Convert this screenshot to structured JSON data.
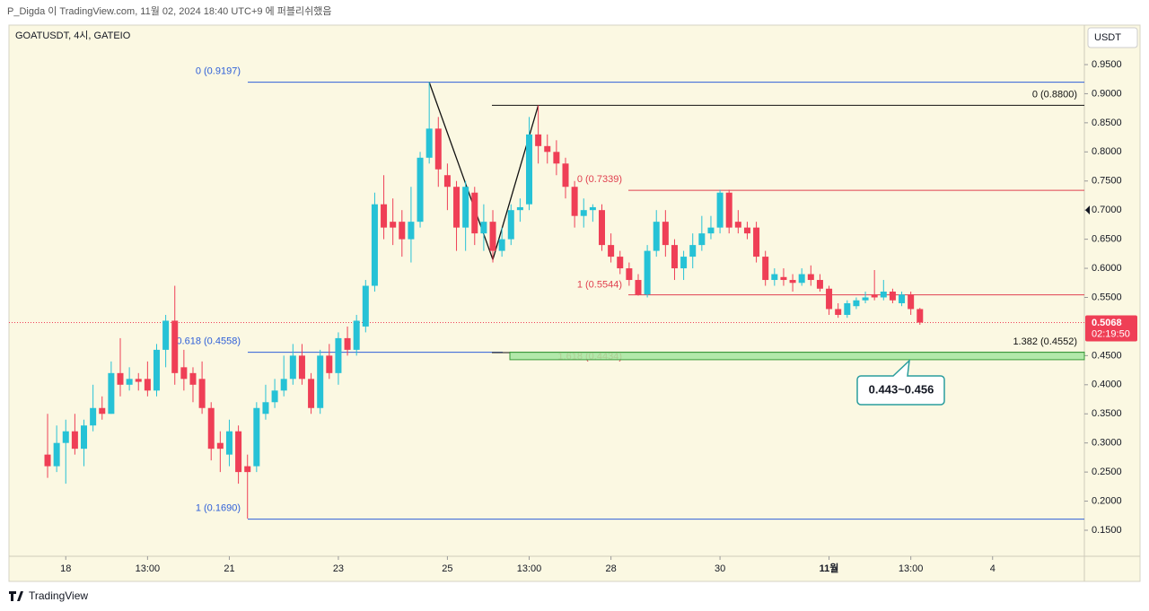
{
  "header": "P_Digda 이 TradingView.com, 11월 02, 2024 18:40 UTC+9 에 퍼블리쉬했음",
  "footer": "TradingView",
  "chart_data": {
    "type": "candlestick",
    "symbol": "GOATUSDT, 4시, GATEIO",
    "axis_unit": "USDT",
    "up_color": "#26c2d6",
    "down_color": "#ef3f56",
    "grid": false,
    "candles": {
      "open": [
        0.28,
        0.26,
        0.3,
        0.32,
        0.29,
        0.33,
        0.36,
        0.35,
        0.42,
        0.4,
        0.41,
        0.41,
        0.39,
        0.46,
        0.51,
        0.43,
        0.42,
        0.41,
        0.36,
        0.3,
        0.28,
        0.32,
        0.26,
        0.26,
        0.35,
        0.37,
        0.39,
        0.41,
        0.45,
        0.41,
        0.36,
        0.45,
        0.42,
        0.48,
        0.46,
        0.5,
        0.57,
        0.71,
        0.68,
        0.68,
        0.65,
        0.68,
        0.79,
        0.84,
        0.76,
        0.74,
        0.67,
        0.73,
        0.66,
        0.68,
        0.63,
        0.65,
        0.7,
        0.71,
        0.83,
        0.81,
        0.8,
        0.78,
        0.74,
        0.69,
        0.7,
        0.7,
        0.64,
        0.62,
        0.6,
        0.58,
        0.555,
        0.63,
        0.68,
        0.64,
        0.6,
        0.62,
        0.64,
        0.66,
        0.67,
        0.73,
        0.68,
        0.67,
        0.67,
        0.62,
        0.58,
        0.585,
        0.58,
        0.575,
        0.59,
        0.58,
        0.565,
        0.53,
        0.52,
        0.535,
        0.545,
        0.555,
        0.55,
        0.56,
        0.54,
        0.555,
        0.53
      ],
      "high": [
        0.35,
        0.33,
        0.34,
        0.35,
        0.34,
        0.4,
        0.38,
        0.44,
        0.48,
        0.43,
        0.42,
        0.44,
        0.47,
        0.52,
        0.57,
        0.46,
        0.43,
        0.44,
        0.37,
        0.32,
        0.34,
        0.33,
        0.28,
        0.37,
        0.4,
        0.41,
        0.45,
        0.47,
        0.47,
        0.42,
        0.46,
        0.47,
        0.49,
        0.5,
        0.52,
        0.58,
        0.73,
        0.76,
        0.72,
        0.7,
        0.74,
        0.8,
        0.92,
        0.86,
        0.78,
        0.75,
        0.75,
        0.74,
        0.71,
        0.7,
        0.67,
        0.71,
        0.72,
        0.86,
        0.88,
        0.83,
        0.82,
        0.79,
        0.75,
        0.72,
        0.71,
        0.71,
        0.66,
        0.63,
        0.61,
        0.59,
        0.64,
        0.7,
        0.7,
        0.65,
        0.63,
        0.66,
        0.69,
        0.69,
        0.735,
        0.735,
        0.7,
        0.68,
        0.68,
        0.63,
        0.6,
        0.6,
        0.59,
        0.6,
        0.605,
        0.59,
        0.57,
        0.54,
        0.545,
        0.55,
        0.56,
        0.597,
        0.58,
        0.565,
        0.56,
        0.56,
        0.532
      ],
      "low": [
        0.24,
        0.25,
        0.23,
        0.28,
        0.26,
        0.32,
        0.34,
        0.35,
        0.38,
        0.39,
        0.39,
        0.38,
        0.38,
        0.43,
        0.4,
        0.39,
        0.37,
        0.35,
        0.27,
        0.25,
        0.26,
        0.23,
        0.17,
        0.25,
        0.34,
        0.36,
        0.38,
        0.4,
        0.4,
        0.35,
        0.35,
        0.41,
        0.4,
        0.45,
        0.45,
        0.49,
        0.56,
        0.65,
        0.64,
        0.62,
        0.61,
        0.67,
        0.78,
        0.74,
        0.7,
        0.63,
        0.63,
        0.64,
        0.63,
        0.61,
        0.62,
        0.64,
        0.68,
        0.7,
        0.78,
        0.78,
        0.76,
        0.72,
        0.67,
        0.67,
        0.68,
        0.63,
        0.61,
        0.59,
        0.57,
        0.553,
        0.55,
        0.62,
        0.62,
        0.58,
        0.58,
        0.6,
        0.63,
        0.65,
        0.66,
        0.66,
        0.66,
        0.65,
        0.61,
        0.57,
        0.57,
        0.57,
        0.56,
        0.57,
        0.57,
        0.56,
        0.52,
        0.515,
        0.515,
        0.53,
        0.54,
        0.545,
        0.545,
        0.54,
        0.535,
        0.52,
        0.503
      ],
      "close": [
        0.26,
        0.3,
        0.32,
        0.29,
        0.33,
        0.36,
        0.35,
        0.42,
        0.4,
        0.41,
        0.405,
        0.39,
        0.46,
        0.51,
        0.42,
        0.41,
        0.4,
        0.36,
        0.29,
        0.29,
        0.32,
        0.25,
        0.25,
        0.36,
        0.37,
        0.39,
        0.41,
        0.45,
        0.41,
        0.36,
        0.45,
        0.42,
        0.48,
        0.46,
        0.51,
        0.57,
        0.71,
        0.67,
        0.67,
        0.65,
        0.68,
        0.79,
        0.84,
        0.77,
        0.74,
        0.67,
        0.74,
        0.66,
        0.68,
        0.63,
        0.65,
        0.7,
        0.705,
        0.83,
        0.81,
        0.8,
        0.78,
        0.74,
        0.69,
        0.7,
        0.705,
        0.64,
        0.62,
        0.6,
        0.58,
        0.555,
        0.63,
        0.68,
        0.64,
        0.6,
        0.62,
        0.64,
        0.66,
        0.67,
        0.73,
        0.67,
        0.67,
        0.66,
        0.62,
        0.58,
        0.59,
        0.58,
        0.575,
        0.59,
        0.58,
        0.565,
        0.53,
        0.52,
        0.54,
        0.545,
        0.55,
        0.55,
        0.56,
        0.545,
        0.555,
        0.53,
        0.5068
      ]
    },
    "xlim": [
      -4.25,
      114.1
    ],
    "xticks": [
      {
        "value": 2,
        "label": "18"
      },
      {
        "value": 11,
        "label": "13:00"
      },
      {
        "value": 20,
        "label": "21"
      },
      {
        "value": 32,
        "label": "23"
      },
      {
        "value": 44,
        "label": "25"
      },
      {
        "value": 53,
        "label": "13:00"
      },
      {
        "value": 62,
        "label": "28"
      },
      {
        "value": 74,
        "label": "30"
      },
      {
        "value": 86,
        "label": "11월"
      },
      {
        "value": 95,
        "label": "13:00"
      },
      {
        "value": 104,
        "label": "4"
      }
    ],
    "ylim": [
      0.1053,
      1.0178
    ],
    "yticks": [
      {
        "value": 0.95,
        "label": "0.9500"
      },
      {
        "value": 0.9,
        "label": "0.9000"
      },
      {
        "value": 0.85,
        "label": "0.8500"
      },
      {
        "value": 0.8,
        "label": "0.8000"
      },
      {
        "value": 0.75,
        "label": "0.7500"
      },
      {
        "value": 0.7,
        "label": "0.7000"
      },
      {
        "value": 0.65,
        "label": "0.6500"
      },
      {
        "value": 0.6,
        "label": "0.6000"
      },
      {
        "value": 0.55,
        "label": "0.5500"
      },
      {
        "value": 0.45,
        "label": "0.4500"
      },
      {
        "value": 0.4,
        "label": "0.4000"
      },
      {
        "value": 0.35,
        "label": "0.3500"
      },
      {
        "value": 0.3,
        "label": "0.3000"
      },
      {
        "value": 0.25,
        "label": "0.2500"
      },
      {
        "value": 0.2,
        "label": "0.2000"
      },
      {
        "value": 0.15,
        "label": "0.1500"
      }
    ],
    "last_price": 0.5068,
    "countdown": "02:19:50",
    "fibs": [
      {
        "label": "0 (0.9197)",
        "value": 0.9197,
        "color": "#2e5fd8"
      },
      {
        "label": "0.618 (0.4558)",
        "value": 0.4558,
        "color": "#2e5fd8"
      },
      {
        "label": "1 (0.1690)",
        "value": 0.169,
        "color": "#2e5fd8"
      },
      {
        "label": "0 (0.8800)",
        "value": 0.88,
        "color": "#111111"
      },
      {
        "label": "1.382 (0.4552)",
        "value": 0.4552,
        "color": "#111111"
      },
      {
        "label": "0 (0.7339)",
        "value": 0.7339,
        "color": "#e0404f"
      },
      {
        "label": "1 (0.5544)",
        "value": 0.5544,
        "color": "#e0404f"
      },
      {
        "label": "1.618 (0.4434)",
        "value": 0.4434,
        "color": "#e0404f"
      }
    ],
    "zone": {
      "label": "0.443~0.456",
      "low": 0.443,
      "high": 0.456
    },
    "pattern": {
      "x": [
        42,
        49,
        54
      ],
      "y": [
        0.9197,
        0.615,
        0.88
      ]
    }
  }
}
